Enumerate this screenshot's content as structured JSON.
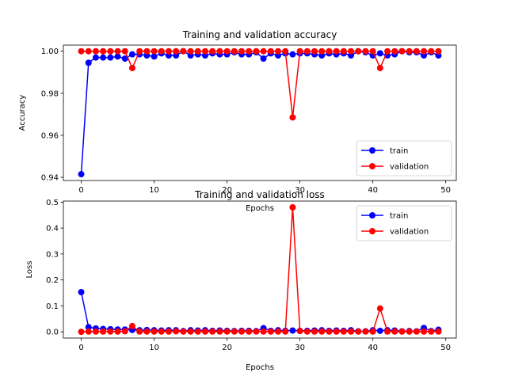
{
  "chart_data": [
    {
      "type": "line",
      "title": "Training and validation accuracy",
      "xlabel": "Epochs",
      "ylabel": "Accuracy",
      "xlim": [
        -2.45,
        51.45
      ],
      "ylim": [
        0.9385,
        1.0029
      ],
      "x_ticks": [
        0,
        10,
        20,
        30,
        40,
        50
      ],
      "x_tick_labels": [
        "0",
        "10",
        "20",
        "30",
        "40",
        "50"
      ],
      "y_ticks": [
        0.94,
        0.96,
        0.98,
        1.0
      ],
      "y_tick_labels": [
        "0.94",
        "0.96",
        "0.98",
        "1.00"
      ],
      "legend": "lower-right",
      "x": [
        0,
        1,
        2,
        3,
        4,
        5,
        6,
        7,
        8,
        9,
        10,
        11,
        12,
        13,
        14,
        15,
        16,
        17,
        18,
        19,
        20,
        21,
        22,
        23,
        24,
        25,
        26,
        27,
        28,
        29,
        30,
        31,
        32,
        33,
        34,
        35,
        36,
        37,
        38,
        39,
        40,
        41,
        42,
        43,
        44,
        45,
        46,
        47,
        48,
        49
      ],
      "series": [
        {
          "name": "train",
          "color": "#0000ff",
          "values": [
            0.9415,
            0.9945,
            0.997,
            0.997,
            0.997,
            0.9975,
            0.9965,
            0.9985,
            0.9985,
            0.998,
            0.9975,
            0.999,
            0.998,
            0.998,
            1.0,
            0.998,
            0.9985,
            0.998,
            0.999,
            0.9985,
            0.9985,
            0.9995,
            0.9985,
            0.9985,
            0.9995,
            0.9965,
            0.999,
            0.998,
            0.999,
            0.9985,
            0.999,
            0.999,
            0.9985,
            0.998,
            0.999,
            0.9985,
            0.999,
            0.998,
            1.0,
            0.9995,
            0.998,
            0.999,
            0.998,
            0.9985,
            1.0,
            0.9995,
            0.9995,
            0.998,
            0.9995,
            0.998
          ]
        },
        {
          "name": "validation",
          "color": "#ff0000",
          "values": [
            1.0,
            1.0,
            1.0,
            1.0,
            1.0,
            1.0,
            1.0,
            0.992,
            1.0,
            1.0,
            1.0,
            1.0,
            1.0,
            1.0,
            1.0,
            1.0,
            1.0,
            1.0,
            1.0,
            1.0,
            1.0,
            1.0,
            1.0,
            1.0,
            1.0,
            1.0,
            1.0,
            1.0,
            1.0,
            0.9685,
            1.0,
            1.0,
            1.0,
            1.0,
            1.0,
            1.0,
            1.0,
            1.0,
            1.0,
            1.0,
            1.0,
            0.992,
            1.0,
            1.0,
            1.0,
            1.0,
            1.0,
            1.0,
            1.0,
            1.0
          ]
        }
      ]
    },
    {
      "type": "line",
      "title": "Training and validation loss",
      "xlabel": "Epochs",
      "ylabel": "Loss",
      "xlim": [
        -2.45,
        51.45
      ],
      "ylim": [
        -0.024,
        0.504
      ],
      "x_ticks": [
        0,
        10,
        20,
        30,
        40,
        50
      ],
      "x_tick_labels": [
        "0",
        "10",
        "20",
        "30",
        "40",
        "50"
      ],
      "y_ticks": [
        0.0,
        0.1,
        0.2,
        0.3,
        0.4,
        0.5
      ],
      "y_tick_labels": [
        "0.0",
        "0.1",
        "0.2",
        "0.3",
        "0.4",
        "0.5"
      ],
      "legend": "upper-right",
      "x": [
        0,
        1,
        2,
        3,
        4,
        5,
        6,
        7,
        8,
        9,
        10,
        11,
        12,
        13,
        14,
        15,
        16,
        17,
        18,
        19,
        20,
        21,
        22,
        23,
        24,
        25,
        26,
        27,
        28,
        29,
        30,
        31,
        32,
        33,
        34,
        35,
        36,
        37,
        38,
        39,
        40,
        41,
        42,
        43,
        44,
        45,
        46,
        47,
        48,
        49
      ],
      "series": [
        {
          "name": "train",
          "color": "#0000ff",
          "values": [
            0.153,
            0.018,
            0.013,
            0.011,
            0.01,
            0.009,
            0.009,
            0.007,
            0.006,
            0.007,
            0.006,
            0.005,
            0.006,
            0.006,
            0.003,
            0.006,
            0.005,
            0.006,
            0.004,
            0.005,
            0.004,
            0.003,
            0.004,
            0.004,
            0.003,
            0.014,
            0.004,
            0.006,
            0.004,
            0.005,
            0.004,
            0.004,
            0.005,
            0.006,
            0.004,
            0.005,
            0.004,
            0.006,
            0.002,
            0.002,
            0.006,
            0.004,
            0.006,
            0.005,
            0.002,
            0.003,
            0.002,
            0.015,
            0.003,
            0.008
          ]
        },
        {
          "name": "validation",
          "color": "#ff0000",
          "values": [
            0.0,
            0.001,
            0.001,
            0.001,
            0.001,
            0.001,
            0.002,
            0.022,
            0.001,
            0.001,
            0.001,
            0.001,
            0.001,
            0.002,
            0.001,
            0.001,
            0.001,
            0.001,
            0.001,
            0.001,
            0.001,
            0.001,
            0.001,
            0.001,
            0.001,
            0.001,
            0.001,
            0.001,
            0.001,
            0.48,
            0.003,
            0.001,
            0.001,
            0.001,
            0.001,
            0.001,
            0.001,
            0.001,
            0.001,
            0.001,
            0.001,
            0.09,
            0.001,
            0.001,
            0.001,
            0.001,
            0.001,
            0.001,
            0.001,
            0.001
          ]
        }
      ]
    }
  ]
}
